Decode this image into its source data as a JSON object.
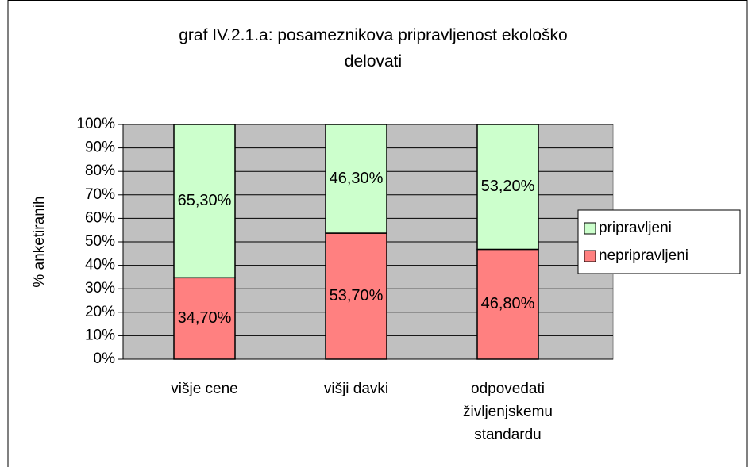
{
  "chart_data": {
    "type": "stacked_bar",
    "title": "graf IV.2.1.a: posameznikova pripravljenost ekološko delovati",
    "y_label": "% anketiranih",
    "categories": [
      "višje cene",
      "višji davki",
      "odpovedati življenjskemu standardu"
    ],
    "series": [
      {
        "name": "nepripravljeni",
        "color": "#ff8080",
        "values": [
          34.7,
          53.7,
          46.8
        ],
        "value_labels": [
          "34,70%",
          "53,70%",
          "46,80%"
        ]
      },
      {
        "name": "pripravljeni",
        "color": "#ccffcc",
        "values": [
          65.3,
          46.3,
          53.2
        ],
        "value_labels": [
          "65,30%",
          "46,30%",
          "53,20%"
        ]
      }
    ],
    "ylim": [
      0,
      100
    ],
    "yticks": [
      {
        "value": 0,
        "label": "0%"
      },
      {
        "value": 10,
        "label": "10%"
      },
      {
        "value": 20,
        "label": "20%"
      },
      {
        "value": 30,
        "label": "30%"
      },
      {
        "value": 40,
        "label": "40%"
      },
      {
        "value": 50,
        "label": "50%"
      },
      {
        "value": 60,
        "label": "60%"
      },
      {
        "value": 70,
        "label": "70%"
      },
      {
        "value": 80,
        "label": "80%"
      },
      {
        "value": 90,
        "label": "90%"
      },
      {
        "value": 100,
        "label": "100%"
      }
    ],
    "plot_background": "#c0c0c0",
    "legend": "right"
  }
}
